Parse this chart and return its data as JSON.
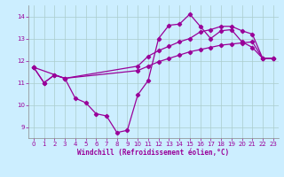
{
  "xlabel": "Windchill (Refroidissement éolien,°C)",
  "xlim": [
    -0.5,
    23.5
  ],
  "ylim": [
    8.5,
    14.5
  ],
  "yticks": [
    9,
    10,
    11,
    12,
    13,
    14
  ],
  "xticks": [
    0,
    1,
    2,
    3,
    4,
    5,
    6,
    7,
    8,
    9,
    10,
    11,
    12,
    13,
    14,
    15,
    16,
    17,
    18,
    19,
    20,
    21,
    22,
    23
  ],
  "bg_color": "#cceeff",
  "line_color": "#990099",
  "grid_color": "#aacccc",
  "line1_x": [
    0,
    1,
    2,
    3,
    4,
    5,
    6,
    7,
    8,
    9,
    10,
    11,
    12,
    13,
    14,
    15,
    16,
    17,
    18,
    19,
    20,
    21,
    22,
    23
  ],
  "line1_y": [
    11.7,
    11.0,
    11.35,
    11.2,
    10.3,
    10.1,
    9.6,
    9.5,
    8.75,
    8.85,
    10.45,
    11.1,
    13.0,
    13.6,
    13.65,
    14.1,
    13.55,
    13.0,
    13.35,
    13.4,
    12.85,
    12.6,
    12.1,
    12.1
  ],
  "line2_x": [
    0,
    1,
    2,
    3,
    10,
    11,
    12,
    13,
    14,
    15,
    16,
    17,
    18,
    19,
    20,
    21,
    22,
    23
  ],
  "line2_y": [
    11.7,
    11.0,
    11.35,
    11.2,
    11.55,
    11.75,
    11.95,
    12.1,
    12.25,
    12.4,
    12.5,
    12.6,
    12.7,
    12.75,
    12.8,
    12.85,
    12.1,
    12.1
  ],
  "line3_x": [
    0,
    3,
    10,
    11,
    12,
    13,
    14,
    15,
    16,
    17,
    18,
    19,
    20,
    21,
    22,
    23
  ],
  "line3_y": [
    11.7,
    11.2,
    11.75,
    12.2,
    12.45,
    12.65,
    12.85,
    13.0,
    13.3,
    13.4,
    13.55,
    13.55,
    13.35,
    13.2,
    12.1,
    12.1
  ]
}
